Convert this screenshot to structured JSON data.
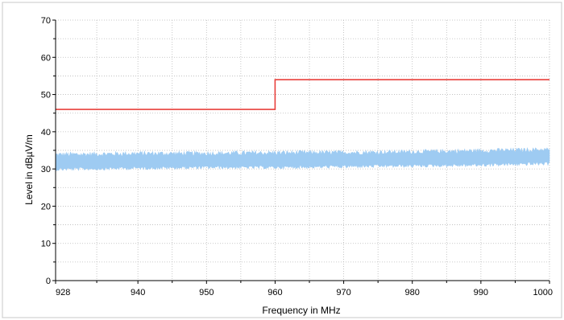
{
  "chart_data": {
    "type": "line",
    "title": "",
    "xlabel": "Frequency in MHz",
    "ylabel": "Level in dBµV/m",
    "xlim": [
      928,
      1000
    ],
    "ylim": [
      0,
      70
    ],
    "x_ticks": [
      928,
      940,
      950,
      960,
      970,
      980,
      990,
      1000
    ],
    "y_ticks": [
      0,
      10,
      20,
      30,
      40,
      50,
      60,
      70
    ],
    "grid": true,
    "legend": "none",
    "series": [
      {
        "kind": "step",
        "color": "#e8403c",
        "x": [
          928,
          960,
          960,
          1000
        ],
        "y": [
          46,
          46,
          54,
          54
        ]
      },
      {
        "kind": "noise-band",
        "color": "#9ecbf2",
        "x": [
          928,
          940,
          950,
          960,
          970,
          980,
          990,
          1000
        ],
        "y": [
          31.5,
          31.8,
          32.0,
          32.0,
          32.3,
          32.5,
          32.8,
          33.2
        ],
        "y_min": [
          29.5,
          29.8,
          30.0,
          30.0,
          30.2,
          30.4,
          30.6,
          31.0
        ],
        "y_max": [
          34.5,
          34.8,
          34.8,
          35.0,
          35.0,
          35.2,
          35.5,
          35.8
        ]
      }
    ]
  }
}
